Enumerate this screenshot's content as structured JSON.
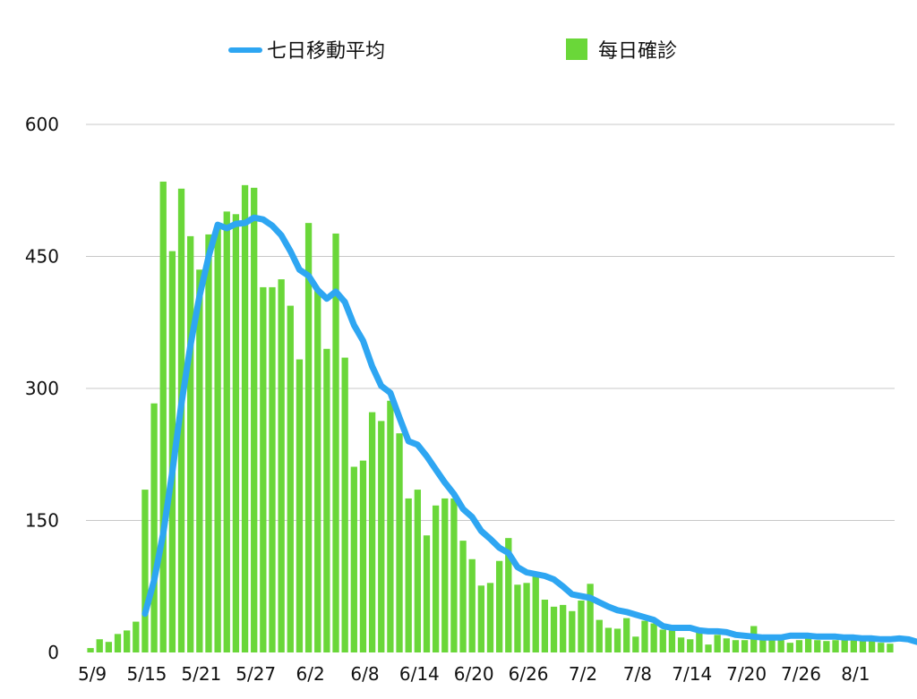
{
  "chart_data": {
    "type": "bar",
    "title": "",
    "xlabel": "",
    "ylabel": "",
    "ylim": [
      0,
      600
    ],
    "yticks": [
      0,
      150,
      300,
      450,
      600
    ],
    "grid": true,
    "legend_position": "top-center",
    "x_tick_labels": [
      "5/9",
      "5/15",
      "5/21",
      "5/27",
      "6/2",
      "6/8",
      "6/14",
      "6/20",
      "6/26",
      "7/2",
      "7/8",
      "7/14",
      "7/20",
      "7/26",
      "8/1"
    ],
    "colors": {
      "bar": "#6ad739",
      "line": "#2ea6f2",
      "grid": "#c8c8c8"
    },
    "series": [
      {
        "name": "每日確診",
        "kind": "bar",
        "values": [
          5,
          15,
          12,
          21,
          25,
          35,
          185,
          283,
          535,
          456,
          527,
          473,
          435,
          475,
          485,
          501,
          498,
          531,
          528,
          415,
          415,
          424,
          394,
          333,
          488,
          413,
          345,
          476,
          335,
          211,
          218,
          273,
          263,
          286,
          249,
          175,
          185,
          133,
          167,
          175,
          175,
          127,
          106,
          76,
          79,
          104,
          130,
          77,
          79,
          87,
          60,
          52,
          54,
          47,
          59,
          78,
          37,
          28,
          27,
          39,
          18,
          36,
          33,
          26,
          25,
          17,
          15,
          28,
          9,
          20,
          16,
          14,
          14,
          30,
          16,
          20,
          14,
          11,
          14,
          16,
          14,
          13,
          14,
          14,
          14,
          13,
          13,
          11,
          10
        ]
      },
      {
        "name": "七日移動平均",
        "kind": "line",
        "start_index": 6,
        "values": [
          44,
          82,
          135,
          205,
          282,
          349,
          405,
          450,
          486,
          482,
          487,
          488,
          494,
          492,
          485,
          474,
          456,
          435,
          428,
          412,
          402,
          410,
          398,
          372,
          354,
          325,
          303,
          295,
          267,
          240,
          236,
          223,
          208,
          193,
          180,
          163,
          154,
          138,
          129,
          119,
          113,
          97,
          91,
          89,
          87,
          83,
          75,
          66,
          64,
          62,
          57,
          52,
          48,
          46,
          43,
          40,
          37,
          30,
          28,
          28,
          28,
          25,
          24,
          24,
          23,
          20,
          19,
          18,
          17,
          17,
          17,
          19,
          19,
          19,
          18,
          18,
          18,
          17,
          17,
          16,
          16,
          15,
          15,
          16,
          15,
          12
        ]
      }
    ]
  }
}
